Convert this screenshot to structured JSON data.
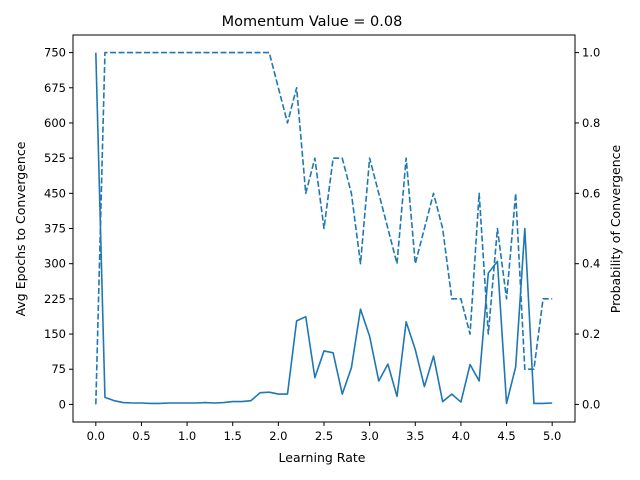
{
  "chart_data": {
    "type": "line",
    "title": "Momentum Value = 0.08",
    "xlabel": "Learning Rate",
    "ylabel_left": "Avg Epochs to Convergence",
    "ylabel_right": "Probability of Convergence",
    "x_ticks": [
      "0.0",
      "0.5",
      "1.0",
      "1.5",
      "2.0",
      "2.5",
      "3.0",
      "3.5",
      "4.0",
      "4.5",
      "5.0"
    ],
    "y_left_ticks": [
      "0",
      "75",
      "150",
      "225",
      "300",
      "375",
      "450",
      "525",
      "600",
      "675",
      "750"
    ],
    "y_right_ticks": [
      "0.0",
      "0.2",
      "0.4",
      "0.6",
      "0.8",
      "1.0"
    ],
    "xlim": [
      -0.25,
      5.25
    ],
    "ylim_left": [
      -37.5,
      787.5
    ],
    "ylim_right": [
      -0.05,
      1.05
    ],
    "grid": false,
    "line_color": "#1f77b4",
    "x": [
      0.0,
      0.1,
      0.2,
      0.3,
      0.4,
      0.5,
      0.6,
      0.7,
      0.8,
      0.9,
      1.0,
      1.1,
      1.2,
      1.3,
      1.4,
      1.5,
      1.6,
      1.7,
      1.8,
      1.9,
      2.0,
      2.1,
      2.2,
      2.3,
      2.4,
      2.5,
      2.6,
      2.7,
      2.8,
      2.9,
      3.0,
      3.1,
      3.2,
      3.3,
      3.4,
      3.5,
      3.6,
      3.7,
      3.8,
      3.9,
      4.0,
      4.1,
      4.2,
      4.3,
      4.4,
      4.5,
      4.6,
      4.7,
      4.8,
      4.9,
      5.0
    ],
    "series": [
      {
        "axis": "left",
        "style": "solid",
        "values": [
          750,
          15,
          8,
          4,
          3,
          3,
          2,
          2,
          3,
          3,
          3,
          3,
          4,
          3,
          4,
          6,
          6,
          8,
          25,
          26,
          22,
          22,
          178,
          187,
          57,
          114,
          110,
          22,
          78,
          203,
          145,
          50,
          86,
          17,
          176,
          117,
          38,
          103,
          6,
          22,
          5,
          85,
          50,
          280,
          305,
          2,
          80,
          375,
          2,
          2,
          3
        ]
      },
      {
        "axis": "right",
        "style": "dashed",
        "values": [
          0.0,
          1.0,
          1.0,
          1.0,
          1.0,
          1.0,
          1.0,
          1.0,
          1.0,
          1.0,
          1.0,
          1.0,
          1.0,
          1.0,
          1.0,
          1.0,
          1.0,
          1.0,
          1.0,
          1.0,
          0.9,
          0.8,
          0.9,
          0.6,
          0.7,
          0.5,
          0.7,
          0.7,
          0.6,
          0.4,
          0.7,
          0.6,
          0.5,
          0.4,
          0.7,
          0.4,
          0.5,
          0.6,
          0.5,
          0.3,
          0.3,
          0.2,
          0.6,
          0.2,
          0.5,
          0.3,
          0.6,
          0.1,
          0.1,
          0.3,
          0.3
        ]
      }
    ]
  }
}
